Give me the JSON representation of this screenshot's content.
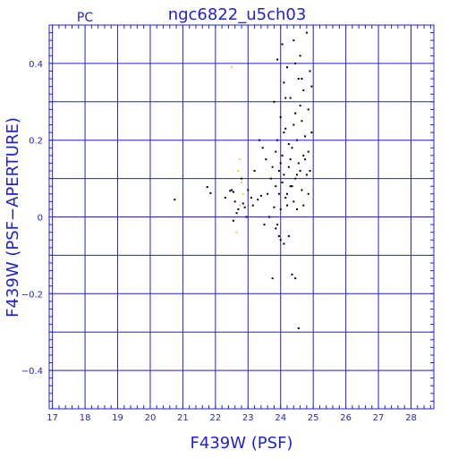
{
  "chart_data": {
    "type": "scatter",
    "title": "ngc6822_u5ch03",
    "corner_label": "PC",
    "xlabel": "F439W (PSF)",
    "ylabel": "F439W (PSF−APERTURE)",
    "xlim": [
      16.9,
      28.7
    ],
    "ylim": [
      -0.5,
      0.5
    ],
    "x_ticks": [
      "17",
      "18",
      "19",
      "20",
      "21",
      "22",
      "23",
      "24",
      "25",
      "26",
      "27",
      "28"
    ],
    "y_ticks": [
      "0.4",
      "0.2",
      "0",
      "−0.2",
      "−0.4"
    ],
    "grid": true,
    "colors": {
      "axis": "#2222cc",
      "points": "#000000",
      "highlight_points": "#ffcc33"
    },
    "series": [
      {
        "color": "#000000",
        "points": [
          [
            20.75,
            0.045
          ],
          [
            21.75,
            0.078
          ],
          [
            21.85,
            0.062
          ],
          [
            22.3,
            0.05
          ],
          [
            22.45,
            0.068
          ],
          [
            22.5,
            0.07
          ],
          [
            22.55,
            0.065
          ],
          [
            22.6,
            0.04
          ],
          [
            22.65,
            0.01
          ],
          [
            22.55,
            -0.01
          ],
          [
            22.7,
            0.02
          ],
          [
            22.8,
            0.1
          ],
          [
            22.85,
            0.035
          ],
          [
            22.9,
            0.025
          ],
          [
            22.95,
            0.0
          ],
          [
            23.0,
            0.07
          ],
          [
            23.1,
            0.05
          ],
          [
            23.15,
            0.03
          ],
          [
            23.2,
            0.12
          ],
          [
            23.3,
            0.045
          ],
          [
            23.35,
            0.2
          ],
          [
            23.4,
            0.055
          ],
          [
            23.45,
            0.18
          ],
          [
            23.5,
            -0.02
          ],
          [
            23.55,
            0.15
          ],
          [
            23.6,
            0.06
          ],
          [
            23.65,
            0.0
          ],
          [
            23.7,
            0.1
          ],
          [
            23.75,
            0.13
          ],
          [
            23.75,
            -0.16
          ],
          [
            23.8,
            0.025
          ],
          [
            23.8,
            0.3
          ],
          [
            23.85,
            0.08
          ],
          [
            23.85,
            -0.03
          ],
          [
            23.9,
            0.41
          ],
          [
            23.9,
            0.2
          ],
          [
            23.95,
            0.06
          ],
          [
            23.95,
            -0.05
          ],
          [
            24.0,
            0.02
          ],
          [
            24.0,
            0.26
          ],
          [
            24.0,
            -0.06
          ],
          [
            24.05,
            0.16
          ],
          [
            24.05,
            0.45
          ],
          [
            24.1,
            0.11
          ],
          [
            24.1,
            0.35
          ],
          [
            24.1,
            -0.07
          ],
          [
            24.15,
            0.05
          ],
          [
            24.15,
            0.23
          ],
          [
            24.2,
            0.03
          ],
          [
            24.2,
            0.39
          ],
          [
            24.25,
            0.13
          ],
          [
            24.25,
            -0.05
          ],
          [
            24.3,
            0.08
          ],
          [
            24.3,
            0.31
          ],
          [
            24.35,
            0.18
          ],
          [
            24.35,
            -0.15
          ],
          [
            24.4,
            0.04
          ],
          [
            24.4,
            0.46
          ],
          [
            24.45,
            0.1
          ],
          [
            24.45,
            0.27
          ],
          [
            24.45,
            -0.16
          ],
          [
            24.5,
            0.02
          ],
          [
            24.5,
            0.2
          ],
          [
            24.55,
            0.36
          ],
          [
            24.55,
            -0.29
          ],
          [
            24.6,
            0.12
          ],
          [
            24.6,
            0.42
          ],
          [
            24.65,
            0.07
          ],
          [
            24.65,
            0.25
          ],
          [
            24.7,
            0.03
          ],
          [
            24.7,
            0.33
          ],
          [
            24.75,
            0.15
          ],
          [
            24.8,
            0.11
          ],
          [
            24.8,
            0.48
          ],
          [
            24.85,
            0.28
          ],
          [
            24.85,
            0.06
          ],
          [
            24.9,
            0.12
          ],
          [
            24.9,
            0.38
          ],
          [
            24.95,
            0.22
          ],
          [
            24.95,
            0.34
          ],
          [
            23.95,
            0.12
          ],
          [
            24.25,
            0.19
          ],
          [
            24.55,
            0.14
          ],
          [
            24.35,
            0.08
          ],
          [
            24.7,
            0.16
          ],
          [
            23.9,
            -0.02
          ],
          [
            24.15,
            0.31
          ],
          [
            24.4,
            0.24
          ],
          [
            24.6,
            0.29
          ],
          [
            24.05,
            0.09
          ],
          [
            24.3,
            0.15
          ],
          [
            24.75,
            0.21
          ],
          [
            24.5,
            0.11
          ],
          [
            24.2,
            0.06
          ],
          [
            23.85,
            0.17
          ],
          [
            24.65,
            0.36
          ],
          [
            24.45,
            0.4
          ],
          [
            24.1,
            0.22
          ],
          [
            24.85,
            0.17
          ],
          [
            24.0,
            0.14
          ]
        ]
      },
      {
        "color": "#ffcc33",
        "points": [
          [
            22.5,
            0.39
          ],
          [
            22.75,
            0.15
          ],
          [
            22.7,
            0.12
          ],
          [
            22.8,
            0.09
          ],
          [
            22.75,
            0.03
          ],
          [
            22.65,
            -0.04
          ],
          [
            22.85,
            0.06
          ]
        ]
      }
    ]
  }
}
